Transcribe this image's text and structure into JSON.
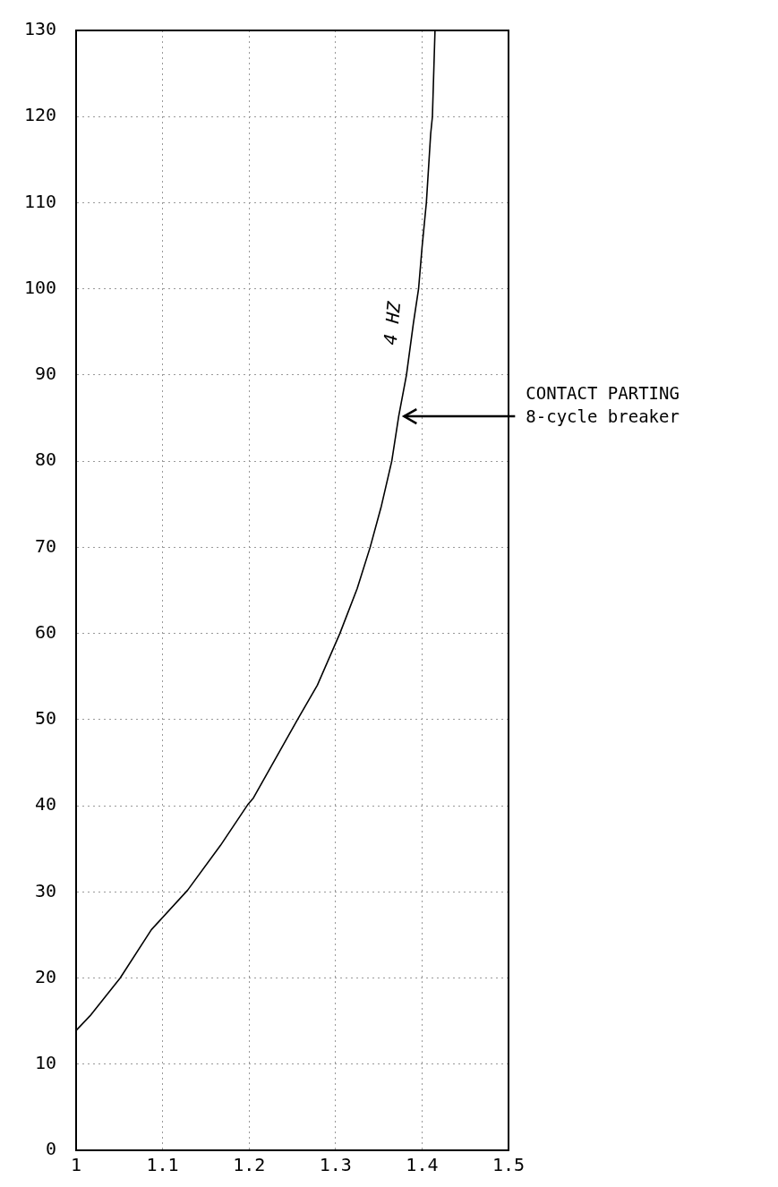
{
  "chart_data": {
    "type": "line",
    "series": [
      {
        "name": "4 HZ",
        "color": "#000000",
        "x": [
          1,
          1.016,
          1.051,
          1.087,
          1.129,
          1.167,
          1.199,
          1.205,
          1.256,
          1.279,
          1.305,
          1.325,
          1.34,
          1.353,
          1.365,
          1.373,
          1.382,
          1.39,
          1.396,
          1.4,
          1.405,
          1.41,
          1.412,
          1.415
        ],
        "values": [
          13.9,
          15.6,
          20,
          25.6,
          30.2,
          35.4,
          40.2,
          40.9,
          50,
          54,
          60,
          65.2,
          70,
          74.8,
          80,
          85.2,
          90,
          96,
          100,
          104.8,
          110,
          118,
          120,
          130
        ]
      }
    ],
    "xlim": [
      1,
      1.5
    ],
    "xticks": [
      1,
      1.1,
      1.2,
      1.3,
      1.4,
      1.5
    ],
    "ylim": [
      0,
      130
    ],
    "yticks": [
      0,
      10,
      20,
      30,
      40,
      50,
      60,
      70,
      80,
      90,
      100,
      110,
      120,
      130
    ],
    "grid": true,
    "legend": false,
    "marker": "none",
    "line_style": "solid",
    "annotations": [
      {
        "text": "CONTACT PARTING\n8-cycle breaker",
        "x": 1.373,
        "y": 85.2
      }
    ]
  }
}
